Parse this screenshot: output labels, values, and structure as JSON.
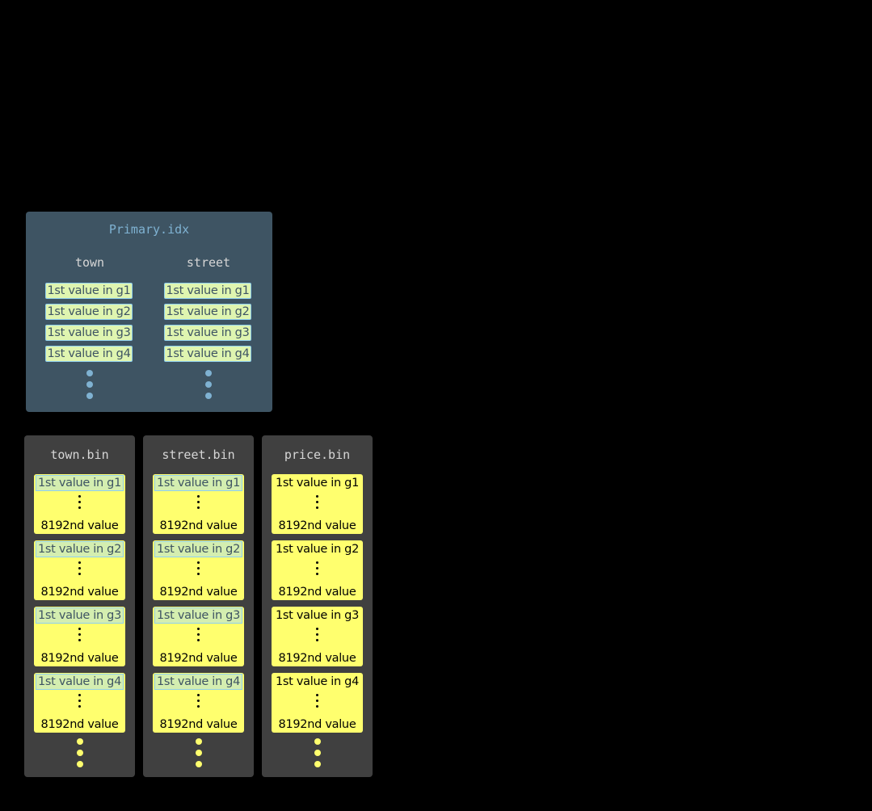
{
  "primary_index": {
    "title": "Primary.idx",
    "columns": [
      {
        "label": "town",
        "entries": [
          "1st value in g1",
          "1st value in g2",
          "1st value in g3",
          "1st value in g4"
        ]
      },
      {
        "label": "street",
        "entries": [
          "1st value in g1",
          "1st value in g2",
          "1st value in g3",
          "1st value in g4"
        ]
      }
    ]
  },
  "bin_files": [
    {
      "title": "town.bin",
      "indexed": true,
      "granules": [
        {
          "first": "1st value in g1",
          "last": "8192nd value"
        },
        {
          "first": "1st value in g2",
          "last": "8192nd value"
        },
        {
          "first": "1st value in g3",
          "last": "8192nd value"
        },
        {
          "first": "1st value in g4",
          "last": "8192nd value"
        }
      ]
    },
    {
      "title": "street.bin",
      "indexed": true,
      "granules": [
        {
          "first": "1st value in g1",
          "last": "8192nd value"
        },
        {
          "first": "1st value in g2",
          "last": "8192nd value"
        },
        {
          "first": "1st value in g3",
          "last": "8192nd value"
        },
        {
          "first": "1st value in g4",
          "last": "8192nd value"
        }
      ]
    },
    {
      "title": "price.bin",
      "indexed": false,
      "granules": [
        {
          "first": "1st value in g1",
          "last": "8192nd value"
        },
        {
          "first": "1st value in g2",
          "last": "8192nd value"
        },
        {
          "first": "1st value in g3",
          "last": "8192nd value"
        },
        {
          "first": "1st value in g4",
          "last": "8192nd value"
        }
      ]
    }
  ],
  "colors": {
    "index_bg": "#3e5463",
    "index_dots": "#7fb2d2",
    "bin_bg": "#404040",
    "granule": "#ffff6e",
    "index_entry": "#dff5b0"
  }
}
